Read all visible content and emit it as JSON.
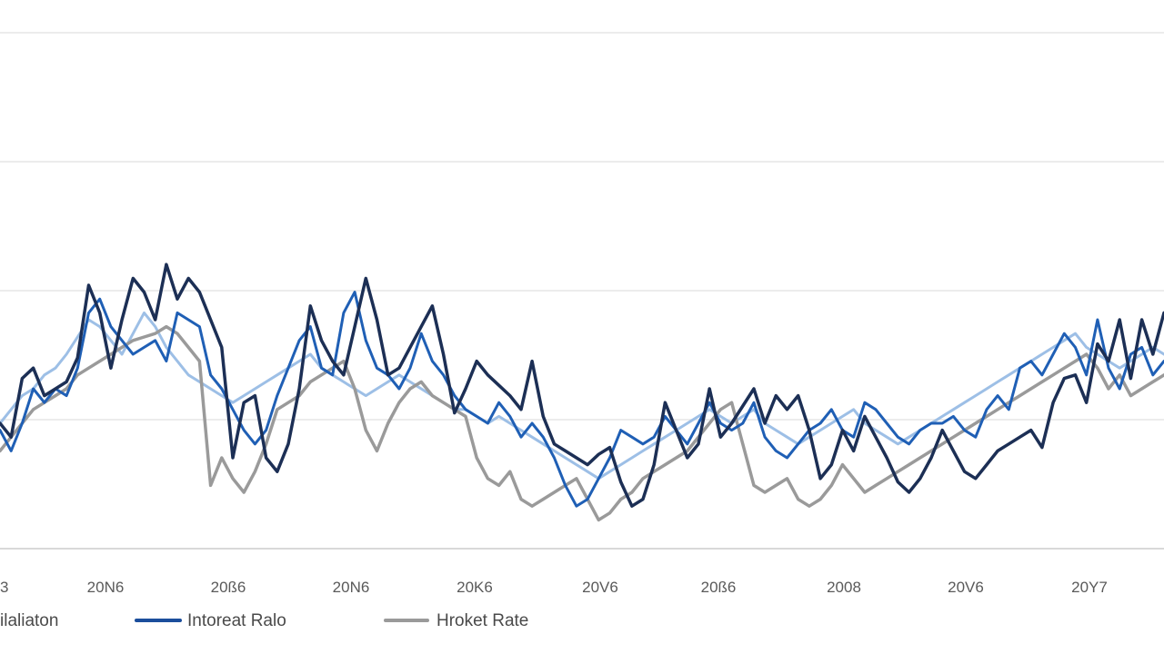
{
  "chart_data": {
    "type": "line",
    "x_ticks": [
      "3",
      "20N6",
      "20ß6",
      "20N6",
      "20K6",
      "20V6",
      "20ß6",
      "2008",
      "20V6",
      "20Y7"
    ],
    "ylim": [
      0,
      100
    ],
    "grid": true,
    "legend_position": "bottom",
    "legend": [
      {
        "label": "ilaliaton",
        "color": "#1b4e9c"
      },
      {
        "label": "Intoreat Ralo",
        "color": "#1b4e9c"
      },
      {
        "label": "Hroket Rate",
        "color": "#9a9a9a"
      }
    ],
    "series": [
      {
        "color": "#1c2f55",
        "width": 3.5,
        "values": [
          30,
          26,
          43,
          46,
          38,
          40,
          42,
          49,
          70,
          62,
          46,
          60,
          72,
          68,
          60,
          76,
          66,
          72,
          68,
          60,
          52,
          20,
          36,
          38,
          20,
          16,
          24,
          40,
          64,
          54,
          48,
          44,
          58,
          72,
          60,
          44,
          46,
          52,
          58,
          64,
          50,
          33,
          40,
          48,
          44,
          41,
          38,
          34,
          48,
          32,
          24,
          22,
          20,
          18,
          21,
          23,
          13,
          6,
          8,
          18,
          36,
          28,
          20,
          24,
          40,
          26,
          30,
          35,
          40,
          30,
          38,
          34,
          38,
          28,
          14,
          18,
          28,
          22,
          32,
          26,
          20,
          13,
          10,
          14,
          20,
          28,
          22,
          16,
          14,
          18,
          22,
          24,
          26,
          28,
          23,
          36,
          43,
          44,
          36,
          53,
          48,
          60,
          43,
          60,
          50,
          62
        ]
      },
      {
        "color": "#1f5fb5",
        "width": 3,
        "values": [
          28,
          22,
          30,
          40,
          36,
          40,
          38,
          46,
          62,
          66,
          58,
          54,
          50,
          52,
          54,
          48,
          62,
          60,
          58,
          44,
          40,
          34,
          28,
          24,
          28,
          38,
          46,
          54,
          58,
          46,
          44,
          62,
          68,
          54,
          46,
          44,
          40,
          46,
          56,
          48,
          44,
          38,
          34,
          32,
          30,
          36,
          32,
          26,
          30,
          26,
          20,
          12,
          6,
          8,
          14,
          20,
          28,
          26,
          24,
          26,
          32,
          28,
          24,
          30,
          36,
          30,
          28,
          30,
          36,
          26,
          22,
          20,
          24,
          28,
          30,
          34,
          28,
          26,
          36,
          34,
          30,
          26,
          24,
          28,
          30,
          30,
          32,
          28,
          26,
          34,
          38,
          34,
          46,
          48,
          44,
          50,
          56,
          52,
          44,
          60,
          46,
          40,
          50,
          52,
          44,
          48
        ]
      },
      {
        "color": "#9dbfe6",
        "width": 3,
        "values": [
          30,
          34,
          38,
          40,
          44,
          46,
          50,
          55,
          60,
          58,
          54,
          50,
          56,
          62,
          58,
          52,
          48,
          44,
          42,
          40,
          38,
          36,
          38,
          40,
          42,
          44,
          46,
          48,
          50,
          46,
          44,
          42,
          40,
          38,
          40,
          42,
          44,
          42,
          40,
          38,
          36,
          34,
          34,
          32,
          30,
          32,
          30,
          28,
          26,
          24,
          22,
          20,
          18,
          16,
          14,
          16,
          18,
          20,
          22,
          24,
          26,
          28,
          30,
          32,
          34,
          32,
          30,
          32,
          34,
          30,
          28,
          26,
          24,
          26,
          28,
          30,
          32,
          34,
          30,
          28,
          26,
          24,
          26,
          28,
          30,
          32,
          34,
          36,
          38,
          40,
          42,
          44,
          46,
          48,
          50,
          52,
          54,
          56,
          52,
          50,
          48,
          46,
          48,
          50,
          52,
          50
        ]
      },
      {
        "color": "#9a9a9a",
        "width": 3.5,
        "values": [
          22,
          26,
          30,
          34,
          36,
          38,
          40,
          44,
          46,
          48,
          50,
          52,
          54,
          55,
          56,
          58,
          56,
          52,
          48,
          12,
          20,
          14,
          10,
          16,
          24,
          34,
          36,
          38,
          42,
          44,
          46,
          48,
          40,
          28,
          22,
          30,
          36,
          40,
          42,
          38,
          36,
          34,
          32,
          20,
          14,
          12,
          16,
          8,
          6,
          8,
          10,
          12,
          14,
          8,
          2,
          4,
          8,
          10,
          14,
          16,
          18,
          20,
          22,
          26,
          30,
          34,
          36,
          24,
          12,
          10,
          12,
          14,
          8,
          6,
          8,
          12,
          18,
          14,
          10,
          12,
          14,
          16,
          18,
          20,
          22,
          24,
          26,
          28,
          30,
          32,
          34,
          36,
          38,
          40,
          42,
          44,
          46,
          48,
          50,
          46,
          40,
          44,
          38,
          40,
          42,
          44
        ]
      }
    ]
  }
}
